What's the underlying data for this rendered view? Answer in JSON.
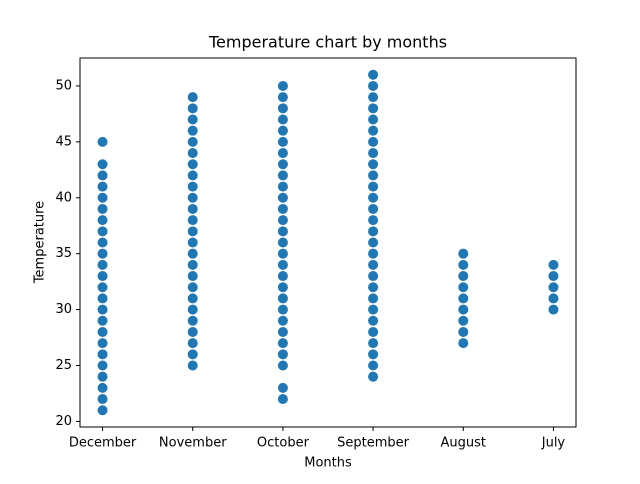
{
  "chart_data": {
    "type": "scatter",
    "title": "Temperature chart by months",
    "x_label": "Months",
    "y_label": "Temperature",
    "categories": [
      "December",
      "November",
      "October",
      "September",
      "August",
      "July"
    ],
    "values": [
      [
        21,
        22,
        23,
        24,
        25,
        26,
        27,
        28,
        29,
        30,
        31,
        32,
        33,
        34,
        35,
        36,
        37,
        38,
        39,
        40,
        41,
        42,
        43,
        45
      ],
      [
        25,
        26,
        27,
        28,
        29,
        30,
        31,
        32,
        33,
        34,
        35,
        36,
        37,
        38,
        39,
        40,
        41,
        42,
        43,
        44,
        45,
        46,
        47,
        48,
        49
      ],
      [
        22,
        23,
        25,
        26,
        27,
        28,
        29,
        30,
        31,
        32,
        33,
        34,
        35,
        36,
        37,
        38,
        39,
        40,
        41,
        42,
        43,
        44,
        45,
        46,
        47,
        48,
        49,
        50
      ],
      [
        24,
        25,
        26,
        27,
        28,
        29,
        30,
        31,
        32,
        33,
        34,
        35,
        36,
        37,
        38,
        39,
        40,
        41,
        42,
        43,
        44,
        45,
        46,
        47,
        48,
        49,
        50,
        51
      ],
      [
        27,
        28,
        29,
        30,
        31,
        32,
        33,
        34,
        35
      ],
      [
        30,
        31,
        32,
        33,
        34
      ]
    ],
    "color": "#1f77b4",
    "ylim": [
      19.5,
      52.5
    ],
    "yticks": [
      20,
      25,
      30,
      35,
      40,
      45,
      50
    ]
  }
}
